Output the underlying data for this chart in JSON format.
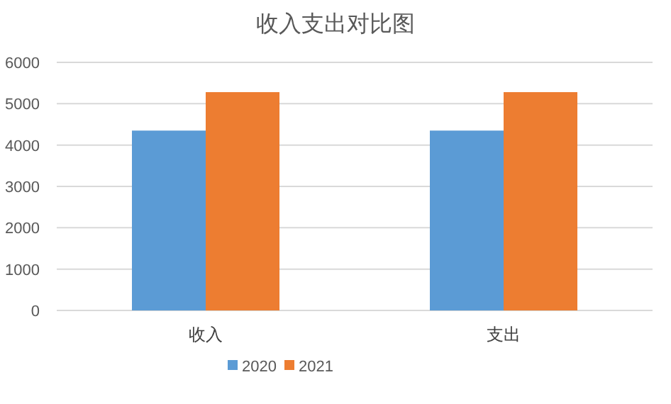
{
  "chart_data": {
    "type": "bar",
    "title": "收入支出对比图",
    "categories": [
      "收入",
      "支出"
    ],
    "series": [
      {
        "name": "2020",
        "color": "#5b9bd5",
        "values": [
          4350,
          4350
        ]
      },
      {
        "name": "2021",
        "color": "#ed7d31",
        "values": [
          5280,
          5280
        ]
      }
    ],
    "ylim": [
      0,
      6000
    ],
    "yticks": [
      0,
      1000,
      2000,
      3000,
      4000,
      5000,
      6000
    ],
    "grid": "y",
    "legend": "bottom"
  }
}
